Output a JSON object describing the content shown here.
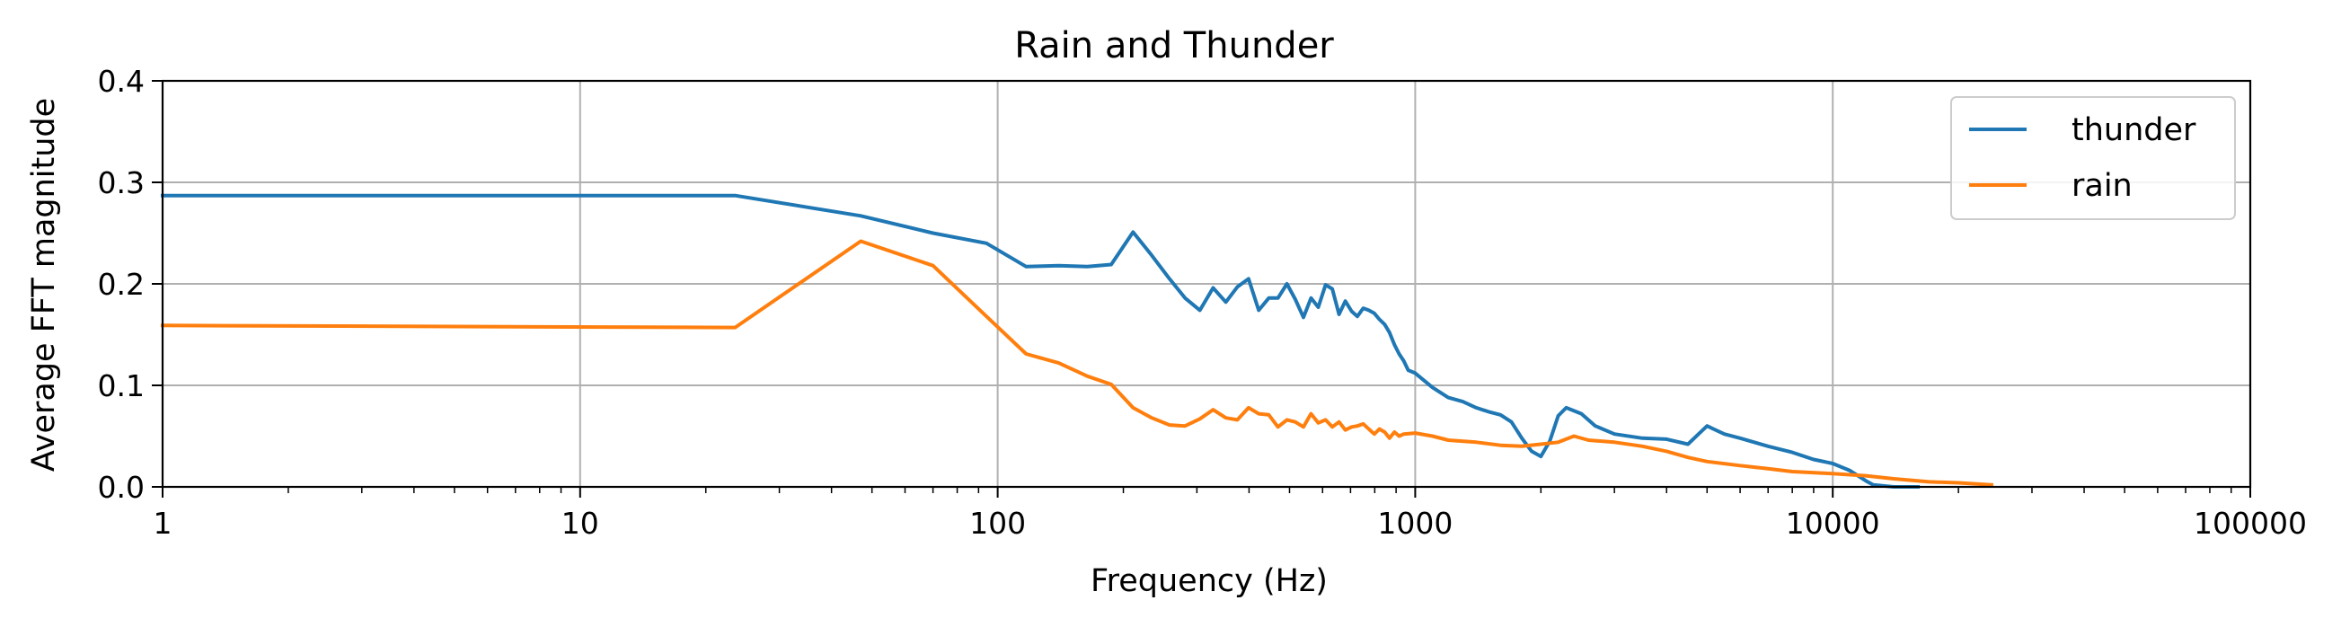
{
  "chart_data": {
    "type": "line",
    "title": "Rain and Thunder",
    "xlabel": "Frequency (Hz)",
    "ylabel": "Average FFT magnitude",
    "xscale": "log",
    "xlim": [
      1,
      100000
    ],
    "ylim": [
      0,
      0.4
    ],
    "xticks": [
      1,
      10,
      100,
      1000,
      10000,
      100000
    ],
    "xtick_labels": [
      "1",
      "10",
      "100",
      "1000",
      "10000",
      "100000"
    ],
    "yticks": [
      0,
      0.1,
      0.2,
      0.3,
      0.4
    ],
    "ytick_labels": [
      "0.0",
      "0.1",
      "0.2",
      "0.3",
      "0.4"
    ],
    "grid": true,
    "legend_position": "top-right",
    "series": [
      {
        "name": "thunder",
        "color": "#1f77b4",
        "points": [
          [
            1,
            0.287
          ],
          [
            23.5,
            0.287
          ],
          [
            47,
            0.267
          ],
          [
            70,
            0.25
          ],
          [
            94,
            0.24
          ],
          [
            117,
            0.217
          ],
          [
            140,
            0.218
          ],
          [
            164,
            0.217
          ],
          [
            187,
            0.219
          ],
          [
            211,
            0.251
          ],
          [
            234,
            0.228
          ],
          [
            258,
            0.205
          ],
          [
            281,
            0.186
          ],
          [
            305,
            0.174
          ],
          [
            328,
            0.196
          ],
          [
            352,
            0.182
          ],
          [
            375,
            0.197
          ],
          [
            399,
            0.205
          ],
          [
            422,
            0.174
          ],
          [
            446,
            0.186
          ],
          [
            469,
            0.186
          ],
          [
            493,
            0.2
          ],
          [
            516,
            0.185
          ],
          [
            540,
            0.167
          ],
          [
            563,
            0.186
          ],
          [
            586,
            0.177
          ],
          [
            610,
            0.199
          ],
          [
            633,
            0.195
          ],
          [
            657,
            0.17
          ],
          [
            680,
            0.183
          ],
          [
            704,
            0.173
          ],
          [
            727,
            0.168
          ],
          [
            751,
            0.176
          ],
          [
            774,
            0.174
          ],
          [
            798,
            0.171
          ],
          [
            821,
            0.165
          ],
          [
            845,
            0.16
          ],
          [
            868,
            0.152
          ],
          [
            892,
            0.14
          ],
          [
            915,
            0.131
          ],
          [
            939,
            0.124
          ],
          [
            962,
            0.115
          ],
          [
            1000,
            0.112
          ],
          [
            1100,
            0.098
          ],
          [
            1200,
            0.088
          ],
          [
            1300,
            0.084
          ],
          [
            1400,
            0.078
          ],
          [
            1500,
            0.074
          ],
          [
            1600,
            0.071
          ],
          [
            1700,
            0.064
          ],
          [
            1800,
            0.048
          ],
          [
            1900,
            0.035
          ],
          [
            2000,
            0.03
          ],
          [
            2100,
            0.045
          ],
          [
            2200,
            0.07
          ],
          [
            2300,
            0.078
          ],
          [
            2500,
            0.072
          ],
          [
            2700,
            0.06
          ],
          [
            3000,
            0.052
          ],
          [
            3500,
            0.048
          ],
          [
            4000,
            0.047
          ],
          [
            4500,
            0.042
          ],
          [
            4800,
            0.053
          ],
          [
            5000,
            0.06
          ],
          [
            5500,
            0.052
          ],
          [
            6000,
            0.048
          ],
          [
            7000,
            0.04
          ],
          [
            8000,
            0.034
          ],
          [
            9000,
            0.027
          ],
          [
            10000,
            0.023
          ],
          [
            11000,
            0.016
          ],
          [
            12000,
            0.006
          ],
          [
            12500,
            0.002
          ],
          [
            14000,
            0.0
          ],
          [
            16000,
            0.0
          ]
        ]
      },
      {
        "name": "rain",
        "color": "#ff7f0e",
        "points": [
          [
            1,
            0.159
          ],
          [
            23.5,
            0.157
          ],
          [
            47,
            0.242
          ],
          [
            70,
            0.218
          ],
          [
            94,
            0.168
          ],
          [
            117,
            0.131
          ],
          [
            140,
            0.122
          ],
          [
            164,
            0.109
          ],
          [
            187,
            0.101
          ],
          [
            211,
            0.078
          ],
          [
            234,
            0.068
          ],
          [
            258,
            0.061
          ],
          [
            281,
            0.06
          ],
          [
            305,
            0.067
          ],
          [
            328,
            0.076
          ],
          [
            352,
            0.068
          ],
          [
            375,
            0.066
          ],
          [
            399,
            0.078
          ],
          [
            422,
            0.072
          ],
          [
            446,
            0.071
          ],
          [
            469,
            0.059
          ],
          [
            493,
            0.066
          ],
          [
            516,
            0.064
          ],
          [
            540,
            0.059
          ],
          [
            563,
            0.072
          ],
          [
            586,
            0.063
          ],
          [
            610,
            0.066
          ],
          [
            633,
            0.059
          ],
          [
            657,
            0.064
          ],
          [
            680,
            0.056
          ],
          [
            704,
            0.059
          ],
          [
            727,
            0.06
          ],
          [
            751,
            0.062
          ],
          [
            774,
            0.057
          ],
          [
            798,
            0.052
          ],
          [
            821,
            0.057
          ],
          [
            845,
            0.054
          ],
          [
            868,
            0.048
          ],
          [
            892,
            0.054
          ],
          [
            915,
            0.05
          ],
          [
            939,
            0.052
          ],
          [
            1000,
            0.053
          ],
          [
            1100,
            0.05
          ],
          [
            1200,
            0.046
          ],
          [
            1400,
            0.044
          ],
          [
            1600,
            0.041
          ],
          [
            1800,
            0.04
          ],
          [
            2000,
            0.042
          ],
          [
            2200,
            0.044
          ],
          [
            2400,
            0.05
          ],
          [
            2600,
            0.046
          ],
          [
            3000,
            0.044
          ],
          [
            3500,
            0.04
          ],
          [
            4000,
            0.035
          ],
          [
            4500,
            0.029
          ],
          [
            5000,
            0.025
          ],
          [
            6000,
            0.021
          ],
          [
            7000,
            0.018
          ],
          [
            8000,
            0.015
          ],
          [
            10000,
            0.013
          ],
          [
            12000,
            0.011
          ],
          [
            14000,
            0.008
          ],
          [
            17000,
            0.005
          ],
          [
            20000,
            0.004
          ],
          [
            24000,
            0.002
          ]
        ]
      }
    ]
  }
}
